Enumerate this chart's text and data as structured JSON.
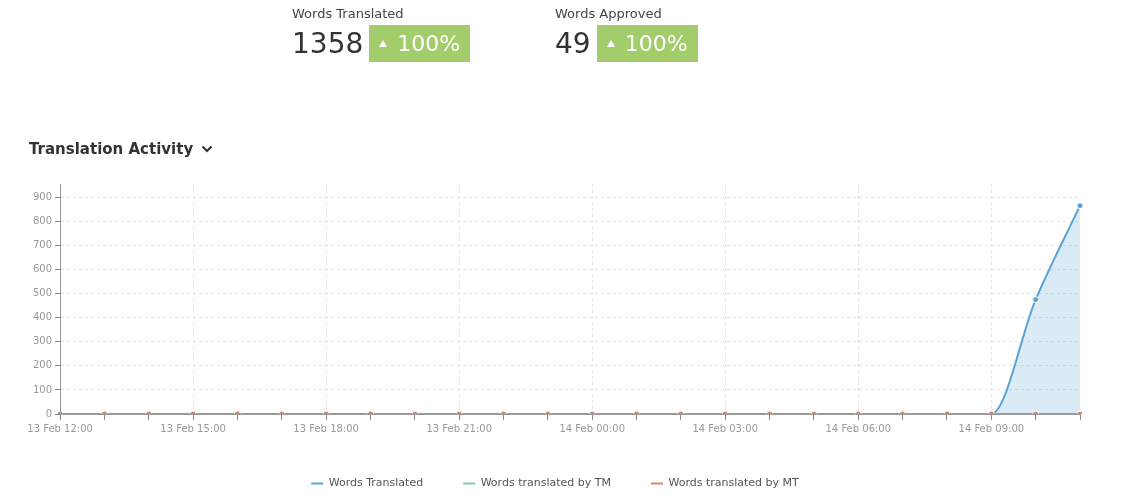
{
  "chart_data": [
    {
      "type": "other",
      "annotations": [
        "Words Translated",
        "1358",
        "100%",
        "Words Approved",
        "49",
        "100%"
      ]
    },
    {
      "type": "line",
      "title": "Translation Activity",
      "categories": [
        "13 Feb 12:00",
        null,
        null,
        "13 Feb 15:00",
        null,
        null,
        "13 Feb 18:00",
        null,
        null,
        "13 Feb 21:00",
        null,
        null,
        "14 Feb 00:00",
        null,
        null,
        "14 Feb 03:00",
        null,
        null,
        "14 Feb 06:00",
        null,
        null,
        "14 Feb 09:00",
        null,
        null
      ],
      "series": [
        {
          "name": "Words Translated",
          "type": "area",
          "color": "#5ba3d6",
          "values": [
            0,
            0,
            0,
            0,
            0,
            0,
            0,
            0,
            0,
            0,
            0,
            0,
            0,
            0,
            0,
            0,
            0,
            0,
            0,
            0,
            0,
            0,
            475,
            865
          ]
        },
        {
          "name": "Words translated by TM",
          "type": "line",
          "color": "#7fcbb0",
          "values": [
            null,
            null,
            null,
            null,
            null,
            null,
            null,
            null,
            null,
            null,
            null,
            null,
            null,
            null,
            null,
            null,
            null,
            null,
            null,
            null,
            null,
            null,
            null,
            null
          ]
        },
        {
          "name": "Words translated by MT",
          "type": "line",
          "color": "#d9876a",
          "values": [
            0,
            0,
            0,
            0,
            0,
            0,
            0,
            0,
            0,
            0,
            0,
            0,
            0,
            0,
            0,
            0,
            0,
            0,
            0,
            0,
            0,
            0,
            0,
            0
          ]
        }
      ],
      "ylim": [
        0,
        955
      ],
      "yticks": [
        0,
        100,
        200,
        300,
        400,
        500,
        600,
        700,
        800,
        900
      ],
      "grid": true,
      "legend": "bottom",
      "marker": "circle"
    }
  ]
}
